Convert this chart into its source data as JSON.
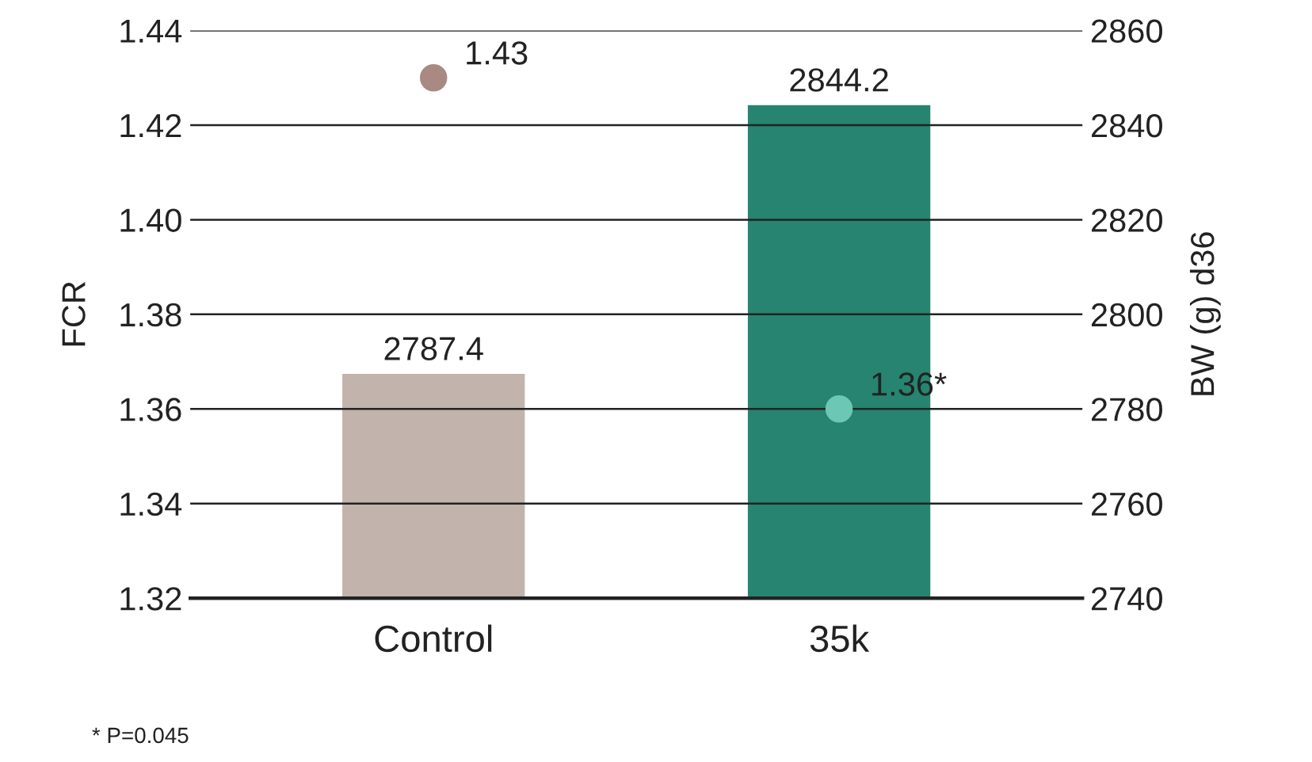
{
  "chart_data": {
    "type": "bar",
    "ylabel": "FCR",
    "y2label": "BW (g) d36",
    "categories": [
      "Control",
      "35k"
    ],
    "series": [
      {
        "axis": "y2",
        "colors": [
          "#c2b3ad",
          "#268470"
        ],
        "values": [
          2787.4,
          2844.2
        ],
        "value_labels": [
          "2787.4",
          "2844.2"
        ]
      },
      {
        "type": "scatter",
        "axis": "y",
        "colors": [
          "#a88a82",
          "#6cc7b5"
        ],
        "values": [
          1.43,
          1.36
        ],
        "value_labels": [
          "1.43",
          "1.36*"
        ]
      }
    ],
    "ylim": [
      1.32,
      1.44
    ],
    "yticks": [
      1.32,
      1.34,
      1.36,
      1.38,
      {
        "value": 1.4,
        "label": "1.40"
      },
      1.42,
      1.44
    ],
    "y2lim": [
      2740,
      2860
    ],
    "y2ticks": [
      2740,
      2760,
      2780,
      2800,
      2820,
      2840,
      2860
    ],
    "grid": "y",
    "marker": "circle",
    "annotations": [
      "* P=0.045"
    ]
  }
}
